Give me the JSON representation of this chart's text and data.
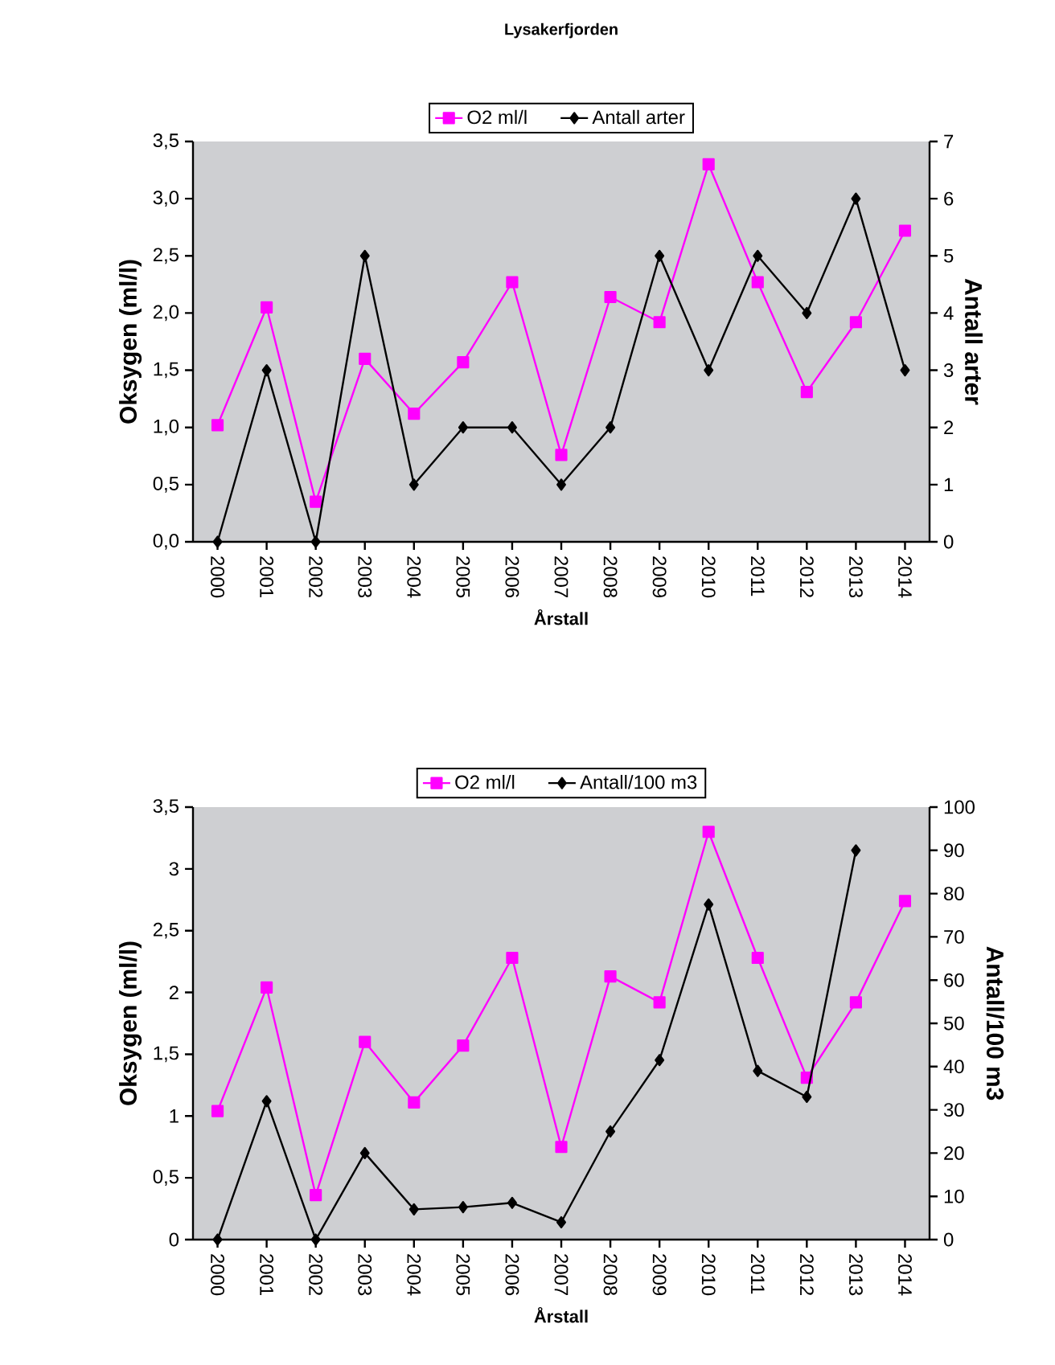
{
  "chart_data": [
    {
      "type": "line",
      "title": "Lysakerfjorden",
      "xlabel": "Årstall",
      "ylabel": "Oksygen (ml/l)",
      "y2label": "Antall arter",
      "categories": [
        "2000",
        "2001",
        "2002",
        "2003",
        "2004",
        "2005",
        "2006",
        "2007",
        "2008",
        "2009",
        "2010",
        "2011",
        "2012",
        "2013",
        "2014"
      ],
      "series": [
        {
          "name": "O2 ml/l",
          "color": "#ff00ff",
          "marker": "square",
          "values": [
            1.02,
            2.05,
            0.35,
            1.6,
            1.12,
            1.57,
            2.27,
            0.76,
            2.14,
            1.92,
            3.3,
            2.27,
            1.31,
            1.92,
            2.72
          ]
        },
        {
          "name": "Antall arter",
          "color": "#000000",
          "marker": "diamond",
          "axis": "y2",
          "values": [
            0,
            3,
            0,
            5,
            1,
            2,
            2,
            1,
            2,
            5,
            3,
            5,
            4,
            6,
            3
          ]
        }
      ],
      "ylim": [
        0,
        3.5
      ],
      "yticks": [
        {
          "value": 0,
          "label": "0,0"
        },
        {
          "value": 0.5,
          "label": "0,5"
        },
        {
          "value": 1,
          "label": "1,0"
        },
        {
          "value": 1.5,
          "label": "1,5"
        },
        {
          "value": 2,
          "label": "2,0"
        },
        {
          "value": 2.5,
          "label": "2,5"
        },
        {
          "value": 3,
          "label": "3,0"
        },
        {
          "value": 3.5,
          "label": "3,5"
        }
      ],
      "y2lim": [
        0,
        7
      ],
      "y2ticks": [
        0,
        1,
        2,
        3,
        4,
        5,
        6,
        7
      ],
      "legend": "top",
      "line_style": "solid",
      "grid": false
    },
    {
      "type": "line",
      "xlabel": "Årstall",
      "ylabel": "Oksygen (ml/l)",
      "y2label": "Antall/100 m3",
      "categories": [
        "2000",
        "2001",
        "2002",
        "2003",
        "2004",
        "2005",
        "2006",
        "2007",
        "2008",
        "2009",
        "2010",
        "2011",
        "2012",
        "2013",
        "2014"
      ],
      "series": [
        {
          "name": "O2 ml/l",
          "color": "#ff00ff",
          "marker": "square",
          "values": [
            1.04,
            2.04,
            0.36,
            1.6,
            1.11,
            1.57,
            2.28,
            0.75,
            2.13,
            1.92,
            3.3,
            2.28,
            1.31,
            1.92,
            2.74
          ]
        },
        {
          "name": "Antall/100  m3",
          "color": "#000000",
          "marker": "diamond",
          "axis": "y2",
          "values": [
            0,
            32,
            0,
            20,
            7,
            7.5,
            8.5,
            4,
            25,
            41.5,
            77.5,
            39,
            33,
            90,
            null
          ]
        }
      ],
      "ylim": [
        0,
        3.5
      ],
      "yticks": [
        0,
        {
          "value": 0.5,
          "label": "0,5"
        },
        1,
        {
          "value": 1.5,
          "label": "1,5"
        },
        2,
        {
          "value": 2.5,
          "label": "2,5"
        },
        3,
        {
          "value": 3.5,
          "label": "3,5"
        }
      ],
      "y2lim": [
        0,
        100
      ],
      "y2ticks": [
        0,
        10,
        20,
        30,
        40,
        50,
        60,
        70,
        80,
        90,
        100
      ],
      "legend": "top",
      "line_style": "solid",
      "grid": false
    }
  ]
}
